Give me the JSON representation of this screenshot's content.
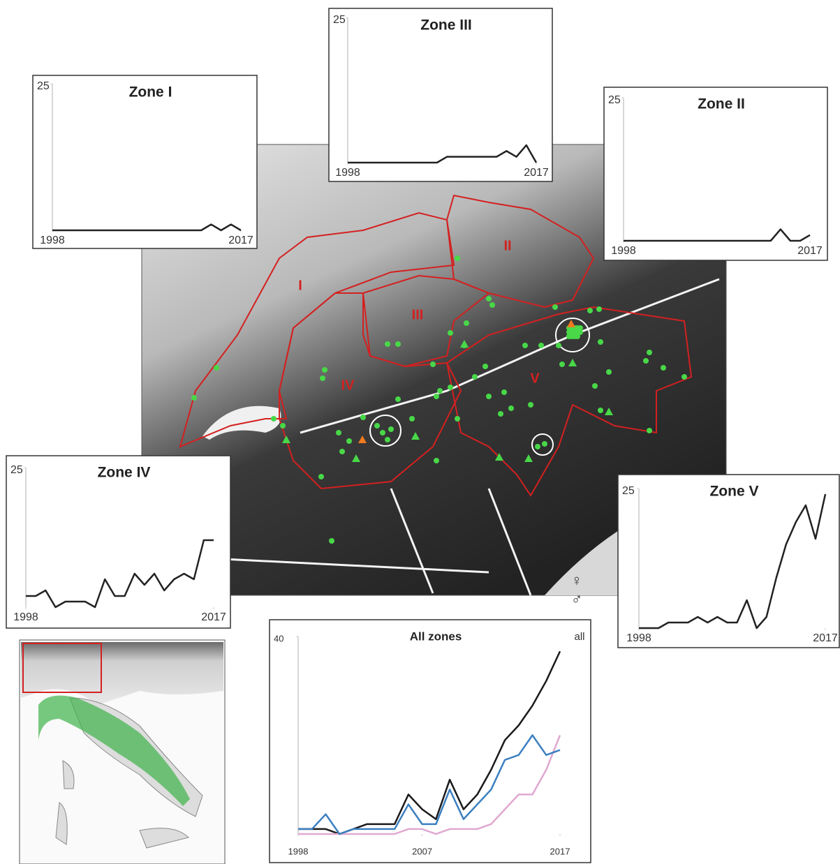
{
  "chart_data": [
    {
      "type": "line",
      "title": "Zone I",
      "x": [
        1998,
        1999,
        2000,
        2001,
        2002,
        2003,
        2004,
        2005,
        2006,
        2007,
        2008,
        2009,
        2010,
        2011,
        2012,
        2013,
        2014,
        2015,
        2016,
        2017
      ],
      "values": [
        0,
        0,
        0,
        0,
        0,
        0,
        0,
        0,
        0,
        0,
        0,
        0,
        0,
        0,
        0,
        0,
        1,
        0,
        1,
        0
      ],
      "color": "#222222",
      "xlim": [
        1998,
        2017
      ],
      "xticks": [
        1998,
        2017
      ],
      "ylim": [
        0,
        25
      ],
      "yticks": [
        25
      ]
    },
    {
      "type": "line",
      "title": "Zone II",
      "x": [
        1998,
        1999,
        2000,
        2001,
        2002,
        2003,
        2004,
        2005,
        2006,
        2007,
        2008,
        2009,
        2010,
        2011,
        2012,
        2013,
        2014,
        2015,
        2016,
        2017
      ],
      "values": [
        0,
        0,
        0,
        0,
        0,
        0,
        0,
        0,
        0,
        0,
        0,
        0,
        0,
        0,
        0,
        0,
        2,
        0,
        0,
        1
      ],
      "color": "#222222",
      "xlim": [
        1998,
        2017
      ],
      "xticks": [
        1998,
        2017
      ],
      "ylim": [
        0,
        25
      ],
      "yticks": [
        25
      ]
    },
    {
      "type": "line",
      "title": "Zone III",
      "x": [
        1998,
        1999,
        2000,
        2001,
        2002,
        2003,
        2004,
        2005,
        2006,
        2007,
        2008,
        2009,
        2010,
        2011,
        2012,
        2013,
        2014,
        2015,
        2016,
        2017
      ],
      "values": [
        0,
        0,
        0,
        0,
        0,
        0,
        0,
        0,
        0,
        0,
        1,
        1,
        1,
        1,
        1,
        1,
        2,
        1,
        3,
        0
      ],
      "color": "#222222",
      "xlim": [
        1998,
        2017
      ],
      "xticks": [
        1998,
        2017
      ],
      "ylim": [
        0,
        25
      ],
      "yticks": [
        25
      ]
    },
    {
      "type": "line",
      "title": "Zone IV",
      "x": [
        1998,
        1999,
        2000,
        2001,
        2002,
        2003,
        2004,
        2005,
        2006,
        2007,
        2008,
        2009,
        2010,
        2011,
        2012,
        2013,
        2014,
        2015,
        2016,
        2017
      ],
      "values": [
        2,
        2,
        3,
        0,
        1,
        1,
        1,
        0,
        5,
        2,
        2,
        6,
        4,
        6,
        3,
        5,
        6,
        5,
        12,
        12
      ],
      "color": "#222222",
      "xlim": [
        1998,
        2017
      ],
      "xticks": [
        1998,
        2017
      ],
      "ylim": [
        0,
        25
      ],
      "yticks": [
        25
      ]
    },
    {
      "type": "line",
      "title": "Zone V",
      "x": [
        1998,
        1999,
        2000,
        2001,
        2002,
        2003,
        2004,
        2005,
        2006,
        2007,
        2008,
        2009,
        2010,
        2011,
        2012,
        2013,
        2014,
        2015,
        2016,
        2017
      ],
      "values": [
        0,
        0,
        0,
        1,
        1,
        1,
        2,
        1,
        2,
        1,
        1,
        5,
        0,
        2,
        9,
        15,
        19,
        22,
        16,
        24
      ],
      "color": "#222222",
      "xlim": [
        1998,
        2017
      ],
      "xticks": [
        1998,
        2017
      ],
      "ylim": [
        0,
        25
      ],
      "yticks": [
        25
      ]
    },
    {
      "type": "line",
      "title": "All zones",
      "x": [
        1998,
        1999,
        2000,
        2001,
        2002,
        2003,
        2004,
        2005,
        2006,
        2007,
        2008,
        2009,
        2010,
        2011,
        2012,
        2013,
        2014,
        2015,
        2016,
        2017
      ],
      "series": [
        {
          "name": "all",
          "color": "#1a1a1a",
          "values": [
            1,
            1,
            1,
            0,
            1,
            2,
            2,
            2,
            8,
            5,
            3,
            11,
            5,
            8,
            13,
            19,
            22,
            26,
            31,
            37
          ]
        },
        {
          "name": "♀",
          "color": "#e0a8d0",
          "values": [
            0,
            0,
            0,
            0,
            0,
            0,
            0,
            0,
            1,
            1,
            0,
            1,
            1,
            1,
            2,
            5,
            8,
            8,
            13,
            20
          ]
        },
        {
          "name": "♂",
          "color": "#3b7fc0",
          "values": [
            1,
            1,
            4,
            0,
            1,
            1,
            1,
            1,
            6,
            2,
            2,
            9,
            3,
            6,
            9,
            15,
            16,
            20,
            16,
            17
          ]
        }
      ],
      "xlim": [
        1998,
        2017
      ],
      "xticks": [
        1998,
        2007,
        2017
      ],
      "ylim": [
        0,
        40
      ],
      "yticks": [
        40
      ]
    }
  ],
  "map_labels": [
    "I",
    "II",
    "III",
    "IV",
    "V"
  ]
}
